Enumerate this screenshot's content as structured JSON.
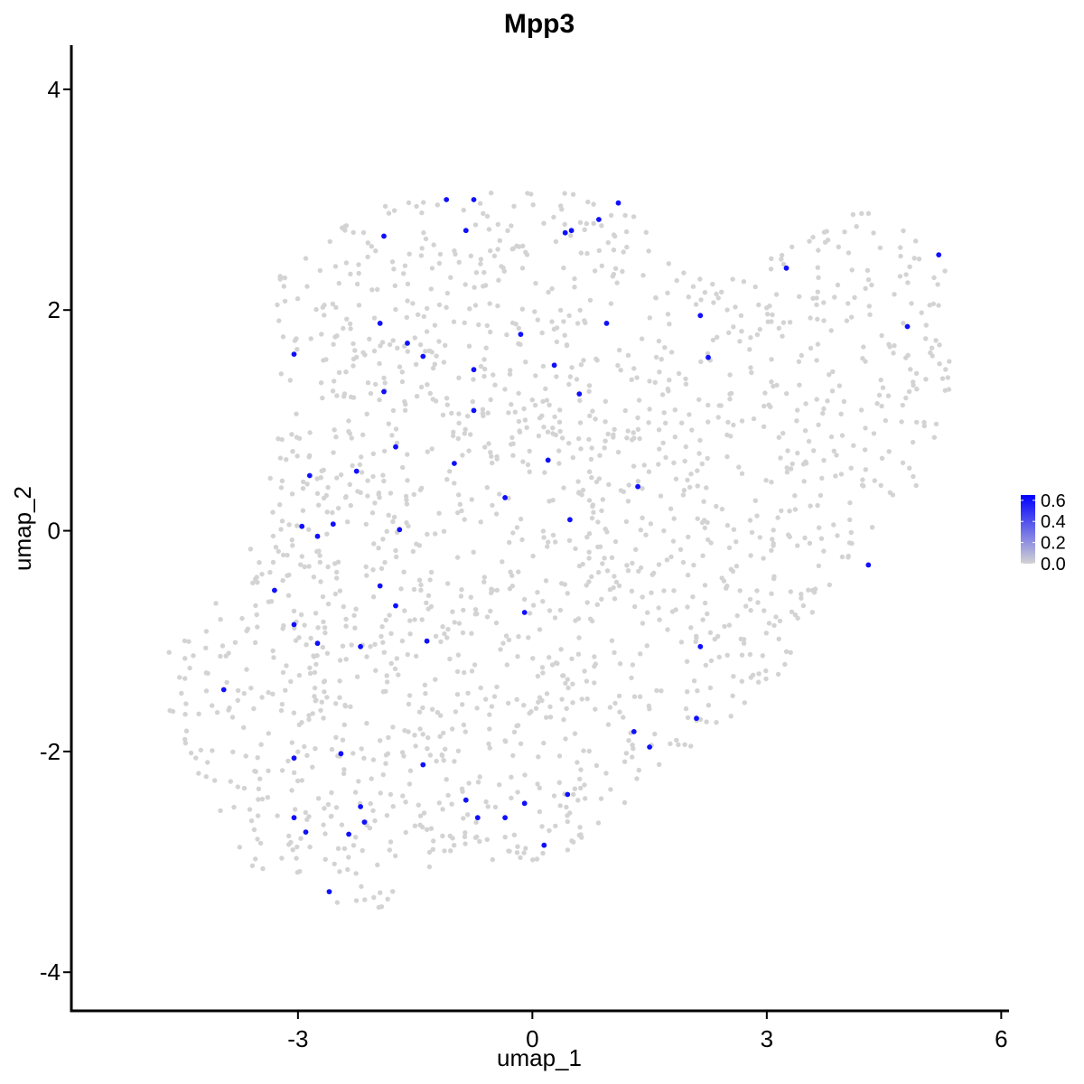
{
  "chart_data": {
    "type": "scatter",
    "title": "Mpp3",
    "xlabel": "umap_1",
    "ylabel": "umap_2",
    "xlim": [
      -5.9,
      6.1
    ],
    "ylim": [
      -4.35,
      4.4
    ],
    "xticks": [
      -3,
      0,
      3,
      6
    ],
    "yticks": [
      -4,
      -2,
      0,
      2,
      4
    ],
    "grid": false,
    "colors": {
      "low": "#d3d3d3",
      "high": "#0000ff"
    },
    "legend": {
      "placement": "right",
      "type": "colorbar",
      "range": [
        0.0,
        0.65
      ],
      "ticks": [
        "0.0",
        "0.2",
        "0.4",
        "0.6"
      ]
    },
    "background_cloud": {
      "polygon": [
        [
          -3.3,
          2.3
        ],
        [
          -2.2,
          2.9
        ],
        [
          -1.0,
          3.05
        ],
        [
          0.2,
          3.1
        ],
        [
          1.3,
          2.95
        ],
        [
          2.0,
          2.3
        ],
        [
          3.0,
          2.45
        ],
        [
          4.3,
          2.95
        ],
        [
          5.3,
          2.5
        ],
        [
          5.35,
          1.2
        ],
        [
          4.8,
          0.2
        ],
        [
          4.0,
          -0.3
        ],
        [
          3.3,
          -1.2
        ],
        [
          2.4,
          -1.8
        ],
        [
          1.5,
          -2.2
        ],
        [
          0.8,
          -2.8
        ],
        [
          0.0,
          -3.05
        ],
        [
          -1.2,
          -3.0
        ],
        [
          -2.0,
          -3.5
        ],
        [
          -2.6,
          -3.4
        ],
        [
          -3.6,
          -3.1
        ],
        [
          -4.15,
          -2.6
        ],
        [
          -4.6,
          -1.8
        ],
        [
          -4.8,
          -1.2
        ],
        [
          -4.2,
          -0.8
        ],
        [
          -3.7,
          -0.2
        ],
        [
          -3.3,
          0.7
        ],
        [
          -3.3,
          1.6
        ]
      ],
      "count": 1750,
      "value": 0.0
    },
    "points": [
      {
        "x": -1.1,
        "y": 3.0,
        "v": 0.6
      },
      {
        "x": -0.75,
        "y": 3.0,
        "v": 0.6
      },
      {
        "x": 1.1,
        "y": 2.97,
        "v": 0.6
      },
      {
        "x": 0.85,
        "y": 2.82,
        "v": 0.6
      },
      {
        "x": 0.5,
        "y": 2.72,
        "v": 0.6
      },
      {
        "x": 0.42,
        "y": 2.7,
        "v": 0.6
      },
      {
        "x": -0.85,
        "y": 2.72,
        "v": 0.6
      },
      {
        "x": -1.9,
        "y": 2.67,
        "v": 0.6
      },
      {
        "x": 3.25,
        "y": 2.38,
        "v": 0.6
      },
      {
        "x": 5.2,
        "y": 2.5,
        "v": 0.6
      },
      {
        "x": 2.15,
        "y": 1.95,
        "v": 0.6
      },
      {
        "x": 4.8,
        "y": 1.85,
        "v": 0.6
      },
      {
        "x": 0.95,
        "y": 1.88,
        "v": 0.6
      },
      {
        "x": -1.95,
        "y": 1.88,
        "v": 0.6
      },
      {
        "x": -0.15,
        "y": 1.78,
        "v": 0.6
      },
      {
        "x": -1.6,
        "y": 1.7,
        "v": 0.6
      },
      {
        "x": -3.05,
        "y": 1.6,
        "v": 0.6
      },
      {
        "x": -1.4,
        "y": 1.58,
        "v": 0.6
      },
      {
        "x": 2.25,
        "y": 1.57,
        "v": 0.6
      },
      {
        "x": 0.28,
        "y": 1.5,
        "v": 0.6
      },
      {
        "x": -0.75,
        "y": 1.46,
        "v": 0.6
      },
      {
        "x": -1.9,
        "y": 1.26,
        "v": 0.6
      },
      {
        "x": 0.6,
        "y": 1.24,
        "v": 0.6
      },
      {
        "x": -0.75,
        "y": 1.09,
        "v": 0.6
      },
      {
        "x": -1.75,
        "y": 0.76,
        "v": 0.6
      },
      {
        "x": 0.2,
        "y": 0.64,
        "v": 0.6
      },
      {
        "x": -1.0,
        "y": 0.61,
        "v": 0.6
      },
      {
        "x": -2.25,
        "y": 0.54,
        "v": 0.6
      },
      {
        "x": -2.85,
        "y": 0.5,
        "v": 0.6
      },
      {
        "x": 1.35,
        "y": 0.4,
        "v": 0.6
      },
      {
        "x": -0.35,
        "y": 0.3,
        "v": 0.6
      },
      {
        "x": 0.48,
        "y": 0.1,
        "v": 0.6
      },
      {
        "x": -2.55,
        "y": 0.06,
        "v": 0.6
      },
      {
        "x": -2.95,
        "y": 0.04,
        "v": 0.6
      },
      {
        "x": -1.7,
        "y": 0.01,
        "v": 0.6
      },
      {
        "x": -2.75,
        "y": -0.05,
        "v": 0.6
      },
      {
        "x": 4.3,
        "y": -0.31,
        "v": 0.6
      },
      {
        "x": -1.95,
        "y": -0.5,
        "v": 0.6
      },
      {
        "x": -3.3,
        "y": -0.54,
        "v": 0.6
      },
      {
        "x": -1.75,
        "y": -0.68,
        "v": 0.6
      },
      {
        "x": -0.1,
        "y": -0.74,
        "v": 0.6
      },
      {
        "x": -3.05,
        "y": -0.85,
        "v": 0.6
      },
      {
        "x": -1.35,
        "y": -1.0,
        "v": 0.6
      },
      {
        "x": -2.75,
        "y": -1.02,
        "v": 0.6
      },
      {
        "x": -2.2,
        "y": -1.05,
        "v": 0.6
      },
      {
        "x": 2.15,
        "y": -1.05,
        "v": 0.6
      },
      {
        "x": -3.95,
        "y": -1.44,
        "v": 0.6
      },
      {
        "x": 2.1,
        "y": -1.7,
        "v": 0.6
      },
      {
        "x": 1.3,
        "y": -1.82,
        "v": 0.6
      },
      {
        "x": 1.5,
        "y": -1.96,
        "v": 0.6
      },
      {
        "x": -2.45,
        "y": -2.02,
        "v": 0.6
      },
      {
        "x": -3.05,
        "y": -2.06,
        "v": 0.6
      },
      {
        "x": -1.4,
        "y": -2.12,
        "v": 0.6
      },
      {
        "x": -0.85,
        "y": -2.44,
        "v": 0.6
      },
      {
        "x": 0.45,
        "y": -2.39,
        "v": 0.6
      },
      {
        "x": -0.1,
        "y": -2.47,
        "v": 0.6
      },
      {
        "x": -2.2,
        "y": -2.5,
        "v": 0.6
      },
      {
        "x": -3.05,
        "y": -2.6,
        "v": 0.6
      },
      {
        "x": -0.7,
        "y": -2.6,
        "v": 0.6
      },
      {
        "x": -0.35,
        "y": -2.6,
        "v": 0.6
      },
      {
        "x": -2.15,
        "y": -2.64,
        "v": 0.6
      },
      {
        "x": -2.9,
        "y": -2.73,
        "v": 0.6
      },
      {
        "x": -2.35,
        "y": -2.75,
        "v": 0.6
      },
      {
        "x": 0.15,
        "y": -2.85,
        "v": 0.6
      },
      {
        "x": -2.6,
        "y": -3.27,
        "v": 0.6
      }
    ]
  }
}
